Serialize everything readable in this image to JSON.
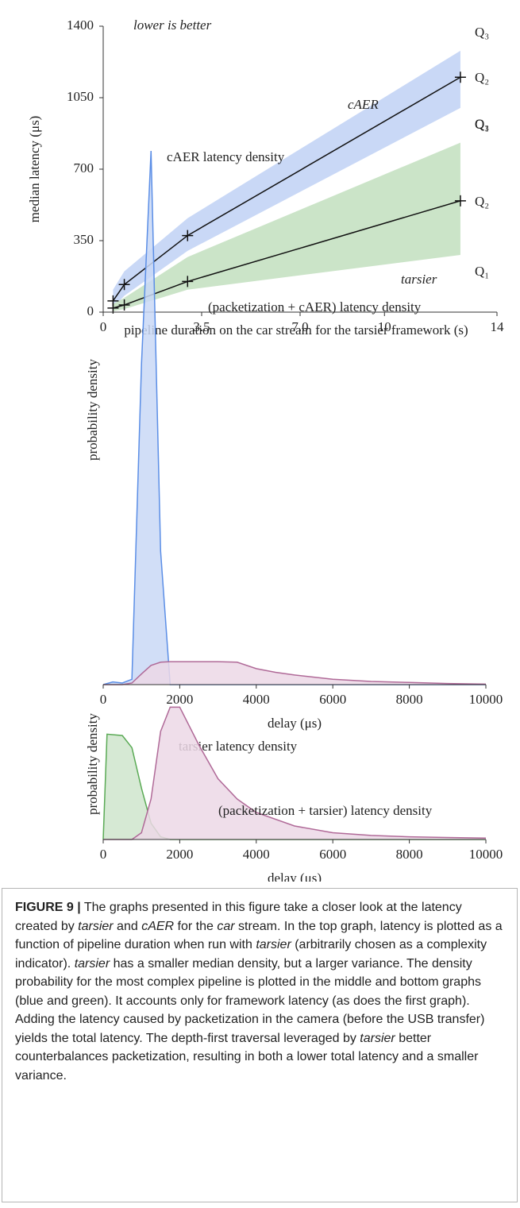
{
  "chart_data": [
    {
      "type": "line",
      "annotation": "lower is better",
      "xlabel": "pipeline duration on the car stream for the tarsier framework (s)",
      "ylabel": "median latency (μs)",
      "xlim": [
        0,
        14
      ],
      "xticks": [
        0,
        3.5,
        {
          "value": 7,
          "label": "7.0"
        },
        10,
        14
      ],
      "ylim": [
        0,
        1400
      ],
      "yticks": [
        0,
        350,
        700,
        1050,
        1400
      ],
      "quartile_labels": [
        "Q₁",
        "Q₂",
        "Q₃"
      ],
      "series": [
        {
          "name": "cAER",
          "color": "#4f86e0",
          "fill": "#c9d8f6",
          "x": [
            0.35,
            0.75,
            3.0,
            12.7
          ],
          "values": [
            55,
            135,
            375,
            1150
          ],
          "q1": [
            20,
            80,
            300,
            1000
          ],
          "q3": [
            110,
            200,
            460,
            1280
          ]
        },
        {
          "name": "tarsier",
          "color": "#5aaa55",
          "fill": "#cbe4c8",
          "x": [
            0.35,
            0.75,
            3.0,
            12.7
          ],
          "values": [
            20,
            35,
            150,
            545
          ],
          "q1": [
            5,
            15,
            110,
            280
          ],
          "q3": [
            40,
            70,
            270,
            830
          ]
        }
      ]
    },
    {
      "type": "area",
      "xlabel": "delay (μs)",
      "ylabel": "probability density",
      "xlim": [
        0,
        10000
      ],
      "xticks": [
        0,
        2000,
        4000,
        6000,
        8000,
        10000
      ],
      "ylim": [
        0,
        100
      ],
      "x": [
        0,
        250,
        500,
        750,
        1000,
        1250,
        1500,
        1750,
        2000,
        2500,
        3000,
        3500,
        4000,
        4500,
        5000,
        6000,
        7000,
        8000,
        9000,
        10000
      ],
      "series": [
        {
          "name": "cAER latency density",
          "color": "#5b8ee6",
          "fill": "#c9d8f6",
          "values": [
            0,
            0.5,
            0.3,
            1,
            60,
            100,
            25,
            0,
            0,
            0,
            0,
            0,
            0,
            0,
            0,
            0,
            0,
            0,
            0,
            0
          ]
        },
        {
          "name": "(packetization + cAER) latency density",
          "color": "#b06a98",
          "fill": "#ecd8e6",
          "values": [
            0,
            0,
            0,
            0.3,
            2,
            3.6,
            4.2,
            4.3,
            4.3,
            4.3,
            4.3,
            4.2,
            3.0,
            2.3,
            1.8,
            1.0,
            0.6,
            0.4,
            0.2,
            0.1
          ]
        }
      ]
    },
    {
      "type": "area",
      "xlabel": "delay (μs)",
      "ylabel": "probability density",
      "xlim": [
        0,
        10000
      ],
      "xticks": [
        0,
        2000,
        4000,
        6000,
        8000,
        10000
      ],
      "ylim": [
        0,
        100
      ],
      "x": [
        0,
        100,
        500,
        750,
        1000,
        1250,
        1500,
        1750,
        2000,
        2500,
        3000,
        3500,
        4000,
        5000,
        6000,
        7000,
        8000,
        9000,
        10000
      ],
      "series": [
        {
          "name": "tarsier latency density",
          "color": "#5aaa55",
          "fill": "#cfe5cc",
          "values": [
            0,
            78,
            77,
            68,
            38,
            12,
            2,
            0,
            0,
            0,
            0,
            0,
            0,
            0,
            0,
            0,
            0,
            0,
            0
          ]
        },
        {
          "name": "(packetization + tarsier) latency density",
          "color": "#b06a98",
          "fill": "#ecd8e6",
          "values": [
            0,
            0,
            0,
            0,
            5,
            30,
            80,
            98,
            98,
            70,
            45,
            30,
            20,
            10,
            5,
            3,
            2,
            1.5,
            1
          ]
        }
      ]
    }
  ],
  "caption": {
    "label": "FIGURE 9 |",
    "runs": [
      {
        "text": " The graphs presented in this figure take a closer look at the latency created by "
      },
      {
        "text": "tarsier",
        "italic": true
      },
      {
        "text": " and "
      },
      {
        "text": "cAER",
        "italic": true
      },
      {
        "text": " for the "
      },
      {
        "text": "car",
        "italic": true
      },
      {
        "text": " stream. In the top graph, latency is plotted as a function of pipeline duration when run with "
      },
      {
        "text": "tarsier",
        "italic": true
      },
      {
        "text": " (arbitrarily chosen as a complexity indicator). "
      },
      {
        "text": "tarsier",
        "italic": true
      },
      {
        "text": " has a smaller median density, but a larger variance. The density probability for the most complex pipeline is plotted in the middle and bottom graphs (blue and green). It accounts only for framework latency (as does the first graph). Adding the latency caused by packetization in the camera (before the USB transfer) yields the total latency. The depth-first traversal leveraged by "
      },
      {
        "text": "tarsier",
        "italic": true
      },
      {
        "text": " better counterbalances packetization, resulting in both a lower total latency and a smaller variance."
      }
    ]
  }
}
